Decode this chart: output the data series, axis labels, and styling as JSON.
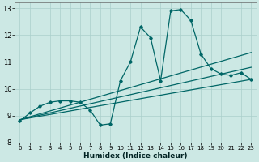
{
  "xlabel": "Humidex (Indice chaleur)",
  "xlim": [
    -0.5,
    23.5
  ],
  "ylim": [
    8,
    13.2
  ],
  "yticks": [
    8,
    9,
    10,
    11,
    12,
    13
  ],
  "xticks": [
    0,
    1,
    2,
    3,
    4,
    5,
    6,
    7,
    8,
    9,
    10,
    11,
    12,
    13,
    14,
    15,
    16,
    17,
    18,
    19,
    20,
    21,
    22,
    23
  ],
  "bg_color": "#cce8e4",
  "grid_color": "#aacfcb",
  "line_color": "#006666",
  "series1_x": [
    0,
    1,
    2,
    3,
    4,
    5,
    6,
    7,
    8,
    9,
    10,
    11,
    12,
    13,
    14,
    15,
    16,
    17,
    18,
    19,
    20,
    21,
    22,
    23
  ],
  "series1_y": [
    8.8,
    9.1,
    9.35,
    9.5,
    9.55,
    9.55,
    9.5,
    9.2,
    8.65,
    8.7,
    10.3,
    11.0,
    12.3,
    11.9,
    10.3,
    12.9,
    12.95,
    12.55,
    11.3,
    10.75,
    10.55,
    10.5,
    10.6,
    10.35
  ],
  "line1_x": [
    0,
    23
  ],
  "line1_y": [
    8.85,
    10.35
  ],
  "line2_x": [
    0,
    23
  ],
  "line2_y": [
    8.85,
    10.8
  ],
  "line3_x": [
    0,
    23
  ],
  "line3_y": [
    8.85,
    11.35
  ]
}
